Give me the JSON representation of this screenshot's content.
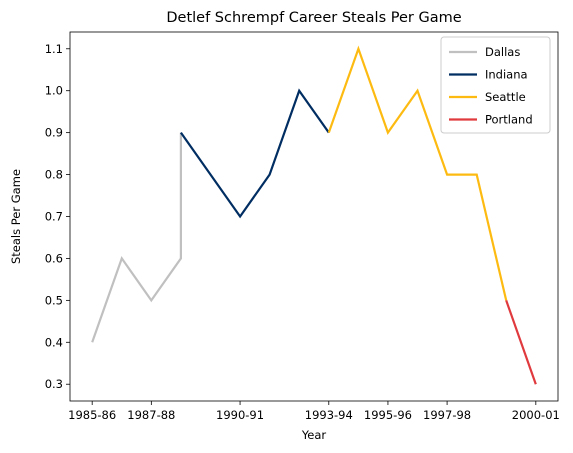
{
  "chart_data": {
    "type": "line",
    "title": "Detlef Schrempf Career Steals Per Game",
    "xlabel": "Year",
    "ylabel": "Steals Per Game",
    "x_tick_labels": [
      "1985-86",
      "1987-88",
      "1990-91",
      "1993-94",
      "1995-96",
      "1997-98",
      "2000-01"
    ],
    "x_tick_positions": [
      0,
      2,
      5,
      8,
      10,
      12,
      15
    ],
    "ylim": [
      0.26,
      1.14
    ],
    "y_ticks": [
      0.3,
      0.4,
      0.5,
      0.6,
      0.7,
      0.8,
      0.9,
      1.0,
      1.1
    ],
    "y_tick_labels": [
      "0.3",
      "0.4",
      "0.5",
      "0.6",
      "0.7",
      "0.8",
      "0.9",
      "1.0",
      "1.1"
    ],
    "xlim": [
      -0.75,
      15.75
    ],
    "legend_position": "top-right",
    "series": [
      {
        "name": "Dallas",
        "color": "#c0c0c0",
        "x": [
          0,
          1,
          2,
          3,
          3
        ],
        "y": [
          0.4,
          0.6,
          0.5,
          0.6,
          0.9
        ]
      },
      {
        "name": "Indiana",
        "color": "#002d62",
        "x": [
          3,
          5,
          6,
          7,
          8
        ],
        "y": [
          0.9,
          0.7,
          0.8,
          1.0,
          0.9
        ]
      },
      {
        "name": "Seattle",
        "color": "#fdbb12",
        "x": [
          8,
          9,
          10,
          11,
          12,
          13,
          14
        ],
        "y": [
          0.9,
          1.1,
          0.9,
          1.0,
          0.8,
          0.8,
          0.5
        ]
      },
      {
        "name": "Portland",
        "color": "#e03a3e",
        "x": [
          14,
          15
        ],
        "y": [
          0.5,
          0.3
        ]
      }
    ]
  }
}
